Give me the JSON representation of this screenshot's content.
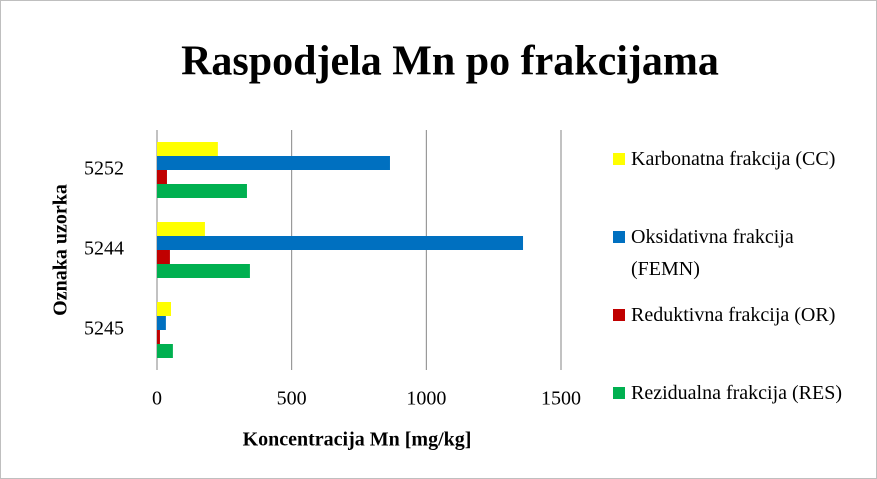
{
  "chart_data": {
    "type": "bar",
    "orientation": "horizontal",
    "title": "Raspodjela Mn po frakcijama",
    "x_label": "Koncentracija Mn [mg/kg]",
    "y_label": "Oznaka uzorka",
    "categories": [
      "5252",
      "5244",
      "5245"
    ],
    "series": [
      {
        "name": "Karbonatna frakcija (CC)",
        "color": "#ffff00",
        "values": [
          226,
          178,
          52
        ]
      },
      {
        "name": "Oksidativna frakcija (FEMN)",
        "color": "#0070c0",
        "values": [
          865,
          1359,
          33
        ]
      },
      {
        "name": "Reduktivna frakcija (OR)",
        "color": "#c00000",
        "values": [
          37,
          48,
          11
        ]
      },
      {
        "name": "Rezidualna frakcija (RES)",
        "color": "#00b050",
        "values": [
          334,
          345,
          59
        ]
      }
    ],
    "xlim": [
      0,
      1500
    ],
    "xticks": [
      0,
      500,
      1000,
      1500
    ],
    "grid": true,
    "legend": "right"
  }
}
